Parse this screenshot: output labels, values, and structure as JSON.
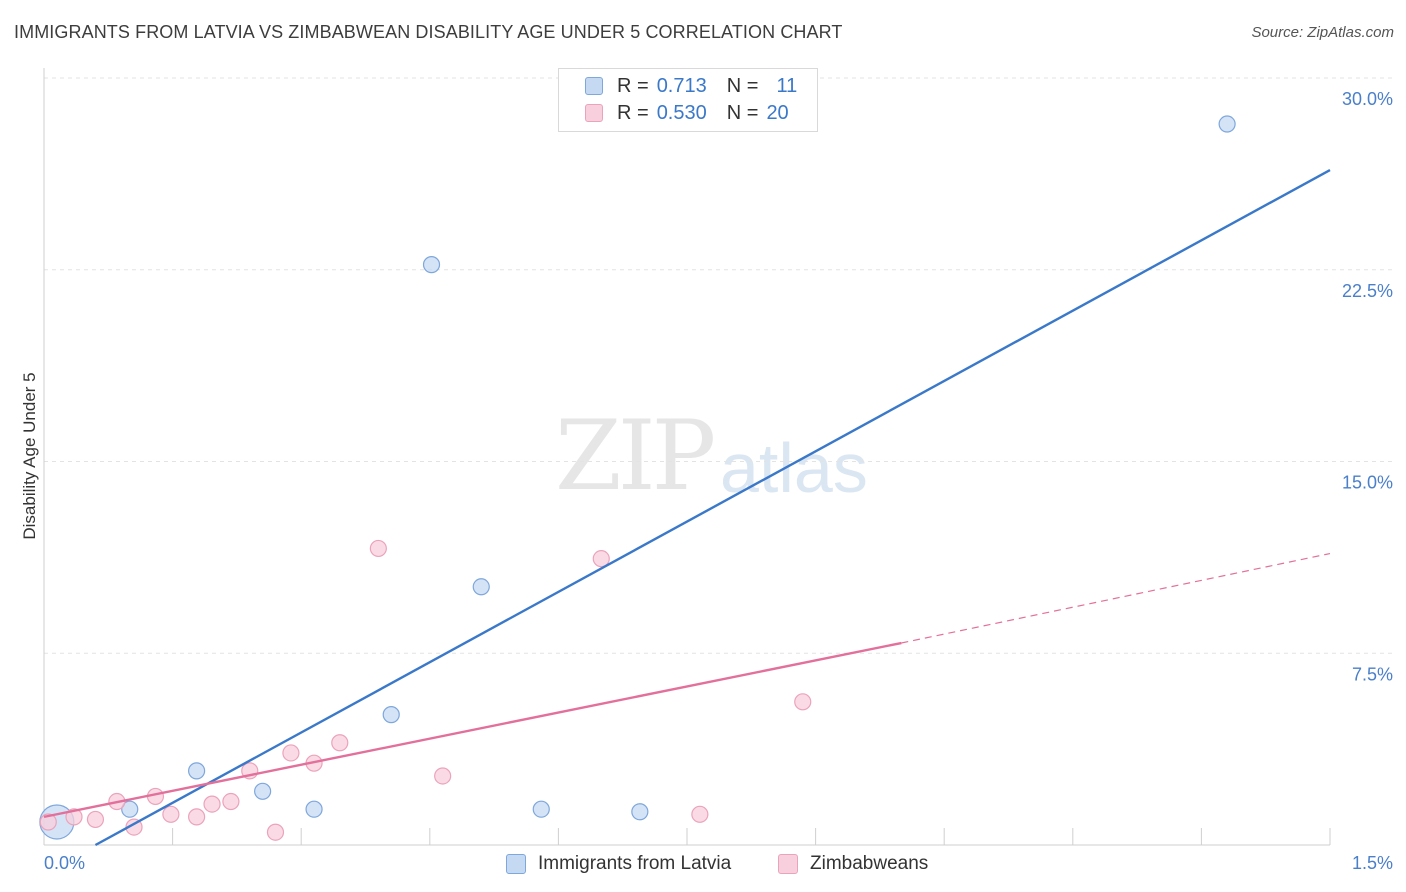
{
  "title": "IMMIGRANTS FROM LATVIA VS ZIMBABWEAN DISABILITY AGE UNDER 5 CORRELATION CHART",
  "source": "Source: ZipAtlas.com",
  "watermark": {
    "zip": "ZIP",
    "atlas": "atlas"
  },
  "colors": {
    "blue": "#3a78c9",
    "blue_fill": "#c5d9f3",
    "pink": "#e3709a",
    "pink_fill": "#f8cfdc",
    "grid": "#e3e3e3"
  },
  "legend": {
    "rows": [
      {
        "r_label": "R =",
        "r_value": "0.713",
        "n_label": "N =",
        "n_value": "11"
      },
      {
        "r_label": "R =",
        "r_value": "0.530",
        "n_label": "N =",
        "n_value": "20"
      }
    ]
  },
  "chart_data": {
    "type": "scatter",
    "ylabel": "Disability Age Under 5",
    "x_range": [
      0,
      1.5
    ],
    "y_range": [
      0,
      30
    ],
    "y_ticks": [
      {
        "value": 7.5,
        "label": "7.5%"
      },
      {
        "value": 15.0,
        "label": "15.0%"
      },
      {
        "value": 22.5,
        "label": "22.5%"
      },
      {
        "value": 30.0,
        "label": "30.0%"
      }
    ],
    "x_tick_labels": {
      "min": "0.0%",
      "max": "1.5%"
    },
    "x_minor_ticks": [
      0.15,
      0.3,
      0.45,
      0.6,
      0.75,
      0.9,
      1.05,
      1.2,
      1.35,
      1.5
    ],
    "series": [
      {
        "name": "Immigrants from Latvia",
        "color": "#3a78c9",
        "R": 0.713,
        "N": 11,
        "points": [
          {
            "x": 0.015,
            "y": 0.9,
            "big": true
          },
          {
            "x": 0.1,
            "y": 1.4
          },
          {
            "x": 0.178,
            "y": 2.9
          },
          {
            "x": 0.255,
            "y": 2.1
          },
          {
            "x": 0.315,
            "y": 1.4
          },
          {
            "x": 0.405,
            "y": 5.1
          },
          {
            "x": 0.452,
            "y": 22.7
          },
          {
            "x": 0.51,
            "y": 10.1
          },
          {
            "x": 0.58,
            "y": 1.4
          },
          {
            "x": 0.695,
            "y": 1.3
          },
          {
            "x": 1.38,
            "y": 28.2
          }
        ],
        "trend": {
          "x0": 0.06,
          "y0": 0.0,
          "x1": 1.5,
          "y1": 26.4
        }
      },
      {
        "name": "Zimbabweans",
        "color": "#e3709a",
        "R": 0.53,
        "N": 20,
        "points": [
          {
            "x": 0.005,
            "y": 0.9
          },
          {
            "x": 0.035,
            "y": 1.1
          },
          {
            "x": 0.06,
            "y": 1.0
          },
          {
            "x": 0.085,
            "y": 1.7
          },
          {
            "x": 0.105,
            "y": 0.7
          },
          {
            "x": 0.13,
            "y": 1.9
          },
          {
            "x": 0.148,
            "y": 1.2
          },
          {
            "x": 0.178,
            "y": 1.1
          },
          {
            "x": 0.196,
            "y": 1.6
          },
          {
            "x": 0.218,
            "y": 1.7
          },
          {
            "x": 0.24,
            "y": 2.9
          },
          {
            "x": 0.27,
            "y": 0.5
          },
          {
            "x": 0.288,
            "y": 3.6
          },
          {
            "x": 0.315,
            "y": 3.2
          },
          {
            "x": 0.345,
            "y": 4.0
          },
          {
            "x": 0.39,
            "y": 11.6
          },
          {
            "x": 0.465,
            "y": 2.7
          },
          {
            "x": 0.65,
            "y": 11.2
          },
          {
            "x": 0.765,
            "y": 1.2
          },
          {
            "x": 0.885,
            "y": 5.6
          }
        ],
        "trend": {
          "x0": 0.0,
          "y0": 1.1,
          "x1": 1.0,
          "y1": 7.9
        },
        "trend_dashed": {
          "x0": 1.0,
          "y0": 7.9,
          "x1": 1.5,
          "y1": 11.4
        }
      }
    ]
  }
}
